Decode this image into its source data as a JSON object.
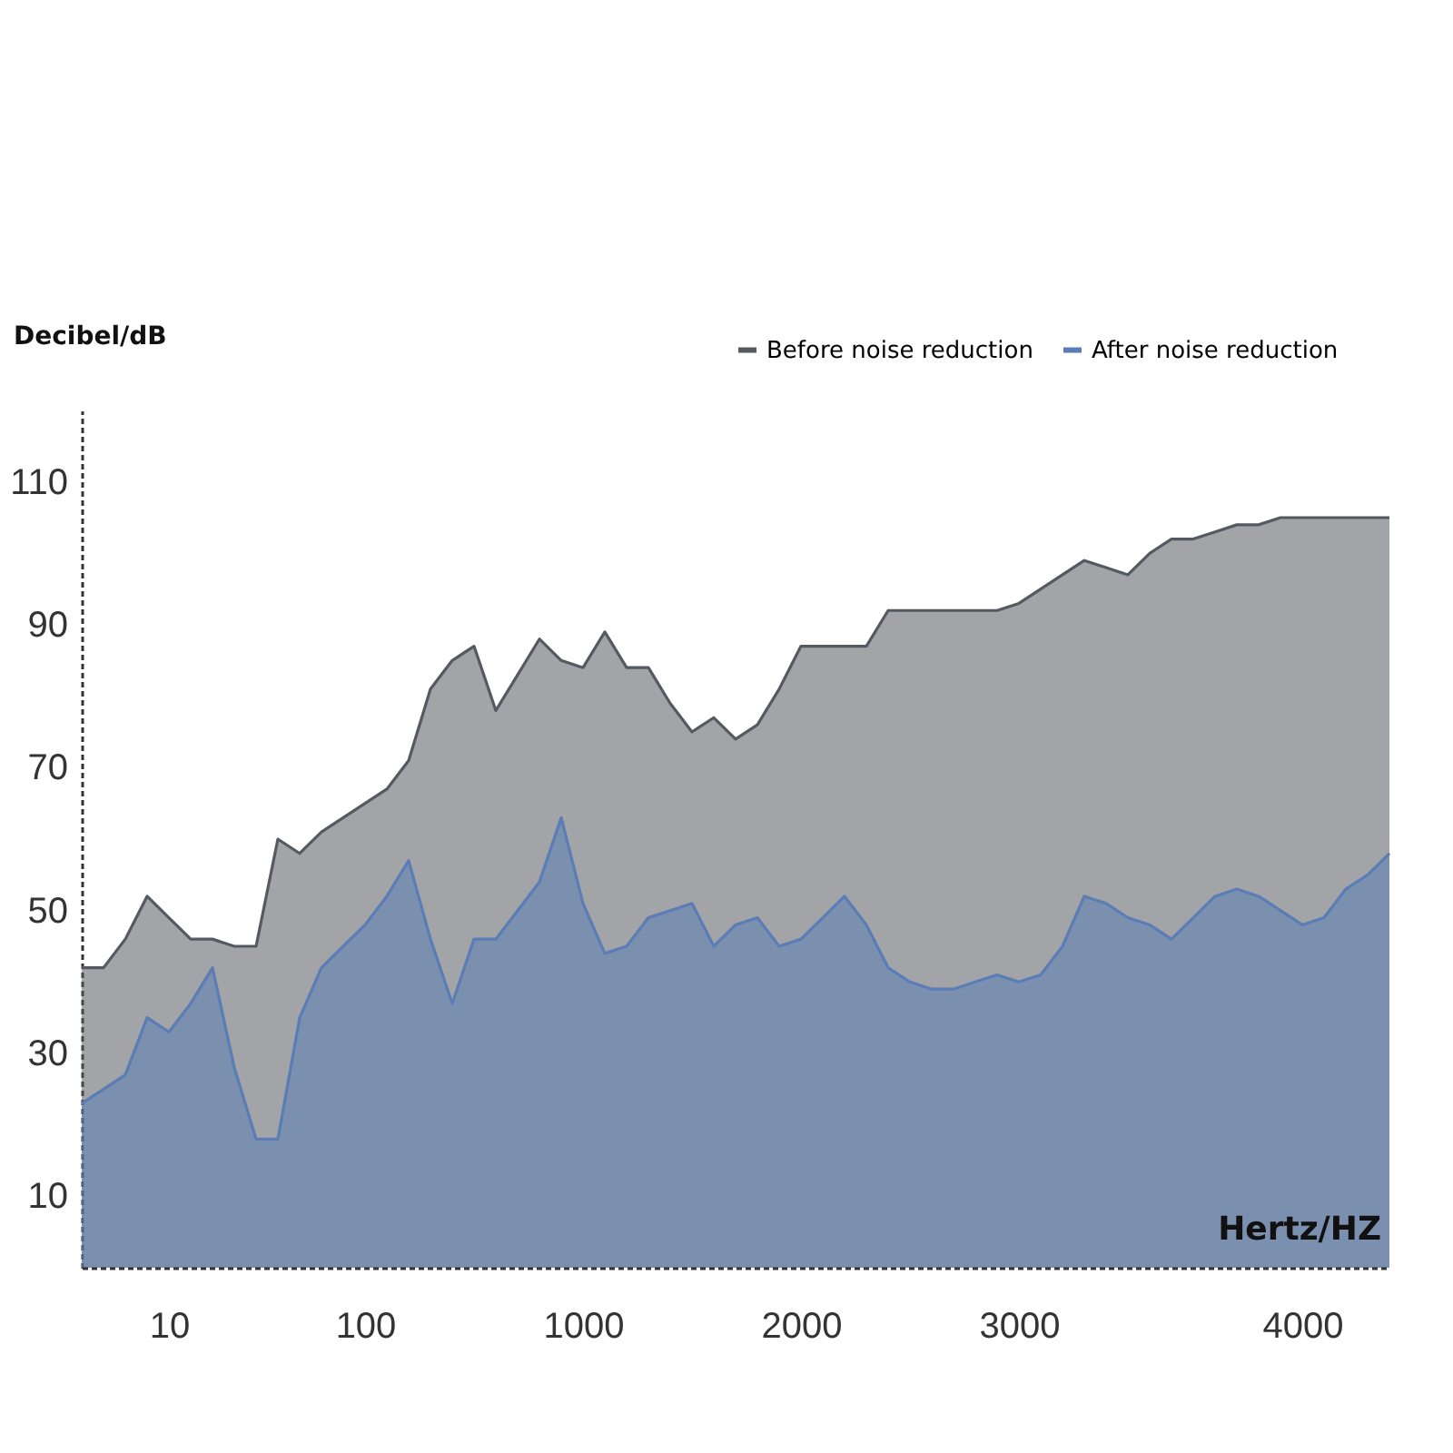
{
  "chart_data": {
    "type": "area",
    "xlabel": "Hertz/HZ",
    "ylabel": "Decibel/dB",
    "categories": [
      null,
      null,
      null,
      null,
      "10",
      null,
      null,
      null,
      null,
      null,
      null,
      null,
      null,
      "100",
      null,
      null,
      null,
      null,
      null,
      null,
      null,
      null,
      null,
      "1000",
      null,
      null,
      null,
      null,
      null,
      null,
      null,
      null,
      null,
      "2000",
      null,
      null,
      null,
      null,
      null,
      null,
      null,
      null,
      null,
      "3000",
      null,
      null,
      null,
      null,
      null,
      null,
      null,
      null,
      null,
      null,
      null,
      null,
      "4000",
      null,
      null,
      null,
      null
    ],
    "series": [
      {
        "name": "Before noise reduction",
        "color": "#555a61",
        "values": [
          42,
          42,
          46,
          52,
          49,
          46,
          46,
          45,
          45,
          60,
          58,
          61,
          63,
          65,
          67,
          71,
          81,
          85,
          87,
          78,
          83,
          88,
          85,
          84,
          89,
          84,
          84,
          79,
          75,
          77,
          74,
          76,
          81,
          87,
          87,
          87,
          87,
          92,
          92,
          92,
          92,
          92,
          92,
          93,
          95,
          97,
          99,
          98,
          97,
          100,
          102,
          102,
          103,
          104,
          104,
          105,
          105,
          105,
          105,
          105,
          105
        ]
      },
      {
        "name": "After noise reduction",
        "color": "#5b7db5",
        "values": [
          23,
          25,
          27,
          35,
          33,
          37,
          42,
          28,
          18,
          18,
          35,
          42,
          45,
          48,
          52,
          57,
          46,
          37,
          46,
          46,
          50,
          54,
          63,
          51,
          44,
          45,
          49,
          50,
          51,
          45,
          48,
          49,
          45,
          46,
          49,
          52,
          48,
          42,
          40,
          39,
          39,
          40,
          41,
          40,
          41,
          45,
          52,
          51,
          49,
          48,
          46,
          49,
          52,
          53,
          52,
          50,
          48,
          49,
          53,
          55,
          58
        ]
      }
    ],
    "ylim": [
      0,
      120
    ],
    "yticks": [
      10,
      30,
      50,
      70,
      90,
      110
    ],
    "grid": false,
    "legend": "top right"
  }
}
